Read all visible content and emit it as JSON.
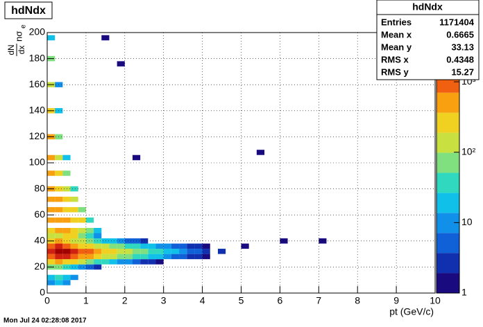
{
  "chart_data": {
    "type": "heatmap",
    "title": "hdNdx",
    "xlabel": "pt (GeV/c)",
    "ylabel_parts": [
      "dN",
      "dx",
      "nσ",
      "e"
    ],
    "xlim": [
      0,
      10
    ],
    "xticks": [
      0,
      1,
      2,
      3,
      4,
      5,
      6,
      7,
      8,
      9,
      10
    ],
    "ylim": [
      0,
      200
    ],
    "yticks": [
      0,
      20,
      40,
      60,
      80,
      100,
      120,
      140,
      160,
      180,
      200
    ],
    "zlim": [
      1,
      5000
    ],
    "zlog": true,
    "zticks": [
      1,
      10,
      {
        "value": 100,
        "label": "10²"
      },
      {
        "value": 1000,
        "label": "10³"
      }
    ],
    "grid": true,
    "palette": [
      "#1a0a80",
      "#1030b0",
      "#1060d8",
      "#1090e8",
      "#10c0e8",
      "#30d8c0",
      "#80e080",
      "#c8e040",
      "#f0d020",
      "#f8a010",
      "#f06010",
      "#d02010",
      "#a00000"
    ],
    "rows": [
      {
        "y": 8,
        "x": [
          0.1,
          0.3,
          0.5
        ],
        "values": [
          10,
          15,
          8
        ]
      },
      {
        "y": 12,
        "x": [
          0.1,
          0.3,
          0.5,
          0.7
        ],
        "values": [
          20,
          30,
          15,
          8
        ]
      },
      {
        "y": 20,
        "x": [
          0.1,
          0.3,
          0.5,
          0.7,
          0.9,
          1.1,
          1.3
        ],
        "values": [
          60,
          80,
          40,
          20,
          10,
          5,
          3
        ]
      },
      {
        "y": 24,
        "x": [
          0.1,
          0.3,
          0.5,
          0.7,
          0.9,
          1.1,
          1.3,
          1.5,
          1.7,
          1.9,
          2.1,
          2.3,
          2.5,
          2.7,
          2.9
        ],
        "values": [
          300,
          500,
          300,
          200,
          120,
          80,
          50,
          30,
          20,
          12,
          8,
          5,
          3,
          2,
          1
        ]
      },
      {
        "y": 28,
        "x": [
          0.1,
          0.3,
          0.5,
          0.7,
          0.9,
          1.1,
          1.3,
          1.5,
          1.7,
          1.9,
          2.1,
          2.3,
          2.5,
          2.7,
          2.9,
          3.1,
          3.3,
          3.5,
          3.7,
          3.9,
          4.1
        ],
        "values": [
          1200,
          2000,
          1500,
          900,
          600,
          400,
          250,
          180,
          120,
          90,
          60,
          40,
          30,
          20,
          15,
          10,
          7,
          5,
          3,
          2,
          1
        ]
      },
      {
        "y": 32,
        "x": [
          0.1,
          0.3,
          0.5,
          0.7,
          0.9,
          1.1,
          1.3,
          1.5,
          1.7,
          1.9,
          2.1,
          2.3,
          2.5,
          2.7,
          2.9,
          3.1,
          3.3,
          3.5,
          3.7,
          3.9,
          4.1,
          4.5
        ],
        "values": [
          2500,
          4500,
          3000,
          2000,
          1200,
          800,
          500,
          350,
          250,
          180,
          120,
          80,
          60,
          40,
          30,
          20,
          14,
          10,
          7,
          5,
          3,
          2
        ]
      },
      {
        "y": 36,
        "x": [
          0.1,
          0.3,
          0.5,
          0.7,
          0.9,
          1.1,
          1.3,
          1.5,
          1.7,
          1.9,
          2.1,
          2.3,
          2.5,
          2.7,
          2.9,
          3.1,
          3.3,
          3.5,
          3.7,
          3.9,
          4.1,
          5.1
        ],
        "values": [
          800,
          1500,
          900,
          500,
          300,
          200,
          150,
          100,
          80,
          60,
          40,
          30,
          20,
          15,
          10,
          8,
          5,
          4,
          3,
          2,
          1,
          1
        ]
      },
      {
        "y": 40,
        "x": [
          0.1,
          0.3,
          0.5,
          0.7,
          0.9,
          1.1,
          1.3,
          1.5,
          1.7,
          1.9,
          2.1,
          2.3,
          2.5,
          6.1,
          7.1
        ],
        "values": [
          300,
          400,
          250,
          150,
          100,
          60,
          40,
          25,
          15,
          10,
          6,
          4,
          2,
          1,
          1
        ]
      },
      {
        "y": 44,
        "x": [
          0.1,
          0.3,
          0.5,
          0.7,
          0.9,
          1.1,
          1.3
        ],
        "values": [
          100,
          150,
          300,
          200,
          80,
          30,
          10
        ]
      },
      {
        "y": 48,
        "x": [
          0.1,
          0.3,
          0.5,
          0.7,
          0.9,
          1.1,
          1.3
        ],
        "values": [
          300,
          500,
          600,
          300,
          150,
          60,
          20
        ]
      },
      {
        "y": 56,
        "x": [
          0.1,
          0.3,
          0.5,
          0.7,
          0.9,
          1.1
        ],
        "values": [
          400,
          700,
          400,
          300,
          200,
          40
        ]
      },
      {
        "y": 64,
        "x": [
          0.1,
          0.3,
          0.5,
          0.7,
          0.9
        ],
        "values": [
          500,
          600,
          300,
          250,
          60
        ]
      },
      {
        "y": 72,
        "x": [
          0.1,
          0.3,
          0.5,
          0.7
        ],
        "values": [
          600,
          400,
          300,
          100
        ]
      },
      {
        "y": 80,
        "x": [
          0.1,
          0.3,
          0.5,
          0.7
        ],
        "values": [
          700,
          350,
          150,
          40
        ]
      },
      {
        "y": 92,
        "x": [
          0.1,
          0.3,
          0.5
        ],
        "values": [
          700,
          250,
          60
        ]
      },
      {
        "y": 104,
        "x": [
          0.1,
          0.3,
          0.5,
          2.3
        ],
        "values": [
          600,
          150,
          20,
          1
        ]
      },
      {
        "y": 108,
        "x": [
          5.5
        ],
        "values": [
          1
        ]
      },
      {
        "y": 120,
        "x": [
          0.1,
          0.3
        ],
        "values": [
          500,
          60
        ]
      },
      {
        "y": 140,
        "x": [
          0.1,
          0.3
        ],
        "values": [
          300,
          20
        ]
      },
      {
        "y": 160,
        "x": [
          0.1,
          0.3
        ],
        "values": [
          150,
          8
        ]
      },
      {
        "y": 176,
        "x": [
          1.9
        ],
        "values": [
          1
        ]
      },
      {
        "y": 180,
        "x": [
          0.1
        ],
        "values": [
          60
        ]
      },
      {
        "y": 196,
        "x": [
          0.1,
          1.5
        ],
        "values": [
          20,
          1
        ]
      }
    ],
    "stats": {
      "title": "hdNdx",
      "rows": [
        [
          "Entries",
          1171404
        ],
        [
          "Mean x",
          0.6665
        ],
        [
          "Mean y",
          33.13
        ],
        [
          "RMS x",
          0.4348
        ],
        [
          "RMS y",
          15.27
        ]
      ]
    },
    "timestamp": "Mon Jul 24 02:28:08 2017"
  }
}
